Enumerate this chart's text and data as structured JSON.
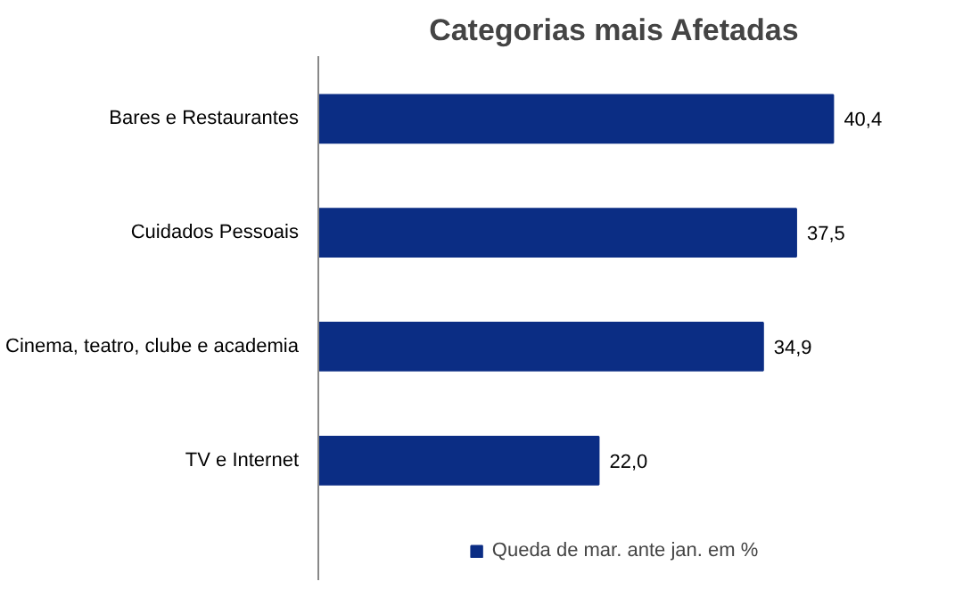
{
  "chart_data": {
    "type": "bar",
    "orientation": "horizontal",
    "title": "Categorias mais Afetadas",
    "categories": [
      "Bares e Restaurantes",
      "Cuidados Pessoais",
      "Cinema, teatro, clube e academia",
      "TV e Internet"
    ],
    "series": [
      {
        "name": "Queda de mar. ante jan. em %",
        "color": "#0b2d84",
        "values": [
          40.4,
          37.5,
          34.9,
          22.0
        ],
        "value_labels": [
          "40,4",
          "37,5",
          "34,9",
          "22,0"
        ]
      }
    ],
    "legend": "bottom",
    "grid": false
  }
}
